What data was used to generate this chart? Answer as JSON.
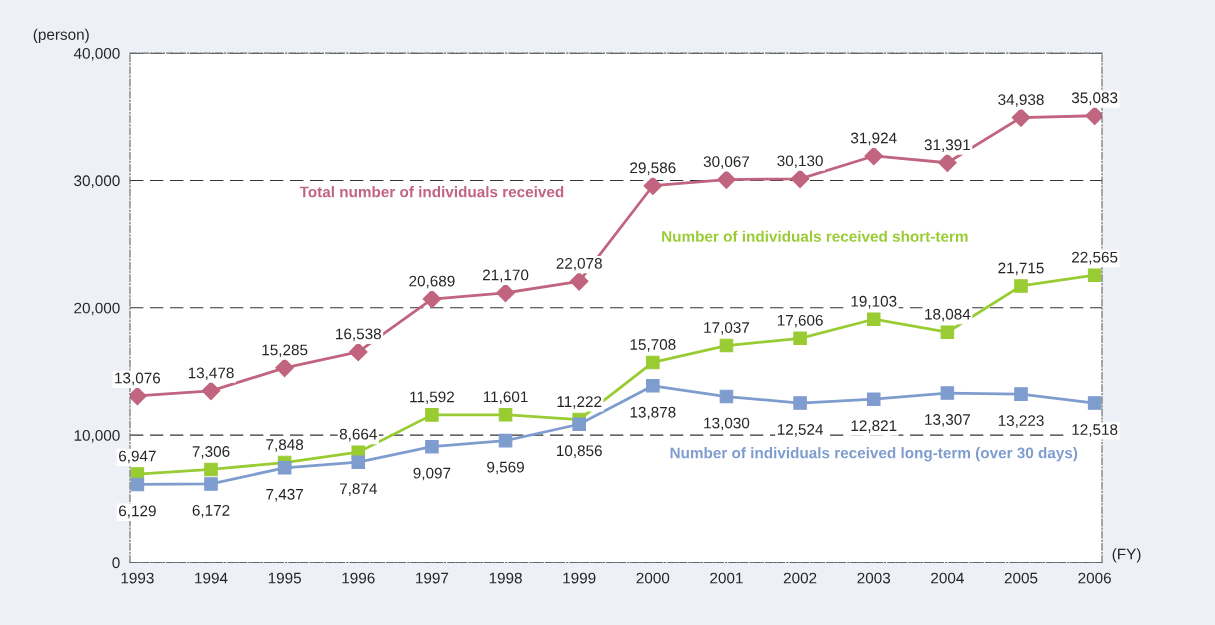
{
  "chart_data": {
    "type": "line",
    "xlabel": "(FY)",
    "ylabel": "(person)",
    "categories": [
      "1993",
      "1994",
      "1995",
      "1996",
      "1997",
      "1998",
      "1999",
      "2000",
      "2001",
      "2002",
      "2003",
      "2004",
      "2005",
      "2006"
    ],
    "ylim": [
      0,
      40000
    ],
    "yticks": [
      {
        "value": 0,
        "label": "0"
      },
      {
        "value": 10000,
        "label": "10,000"
      },
      {
        "value": 20000,
        "label": "20,000"
      },
      {
        "value": 30000,
        "label": "30,000"
      },
      {
        "value": 40000,
        "label": "40,000"
      }
    ],
    "grid": "y",
    "line_style": "solid",
    "series": [
      {
        "name": "Total number of individuals received",
        "color": "#c0647f",
        "marker": "diamond",
        "values": [
          13076,
          13478,
          15285,
          16538,
          20689,
          21170,
          22078,
          29586,
          30067,
          30130,
          31924,
          31391,
          34938,
          35083
        ],
        "value_labels": [
          "13,076",
          "13,478",
          "15,285",
          "16,538",
          "20,689",
          "21,170",
          "22,078",
          "29,586",
          "30,067",
          "30,130",
          "31,924",
          "31,391",
          "34,938",
          "35,083"
        ]
      },
      {
        "name": "Number of individuals received short-term",
        "color": "#99cc33",
        "marker": "square",
        "values": [
          6947,
          7306,
          7848,
          8664,
          11592,
          11601,
          11222,
          15708,
          17037,
          17606,
          19103,
          18084,
          21715,
          22565
        ],
        "value_labels": [
          "6,947",
          "7,306",
          "7,848",
          "8,664",
          "11,592",
          "11,601",
          "11,222",
          "15,708",
          "17,037",
          "17,606",
          "19,103",
          "18,084",
          "21,715",
          "22,565"
        ]
      },
      {
        "name": "Number of individuals received long-term (over 30 days)",
        "color": "#7f9ccf",
        "marker": "square",
        "values": [
          6129,
          6172,
          7437,
          7874,
          9097,
          9569,
          10856,
          13878,
          13030,
          12524,
          12821,
          13307,
          13223,
          12518
        ],
        "value_labels": [
          "6,129",
          "6,172",
          "7,437",
          "7,874",
          "9,097",
          "9,569",
          "10,856",
          "13,878",
          "13,030",
          "12,524",
          "12,821",
          "13,307",
          "13,223",
          "12,518"
        ]
      }
    ]
  }
}
